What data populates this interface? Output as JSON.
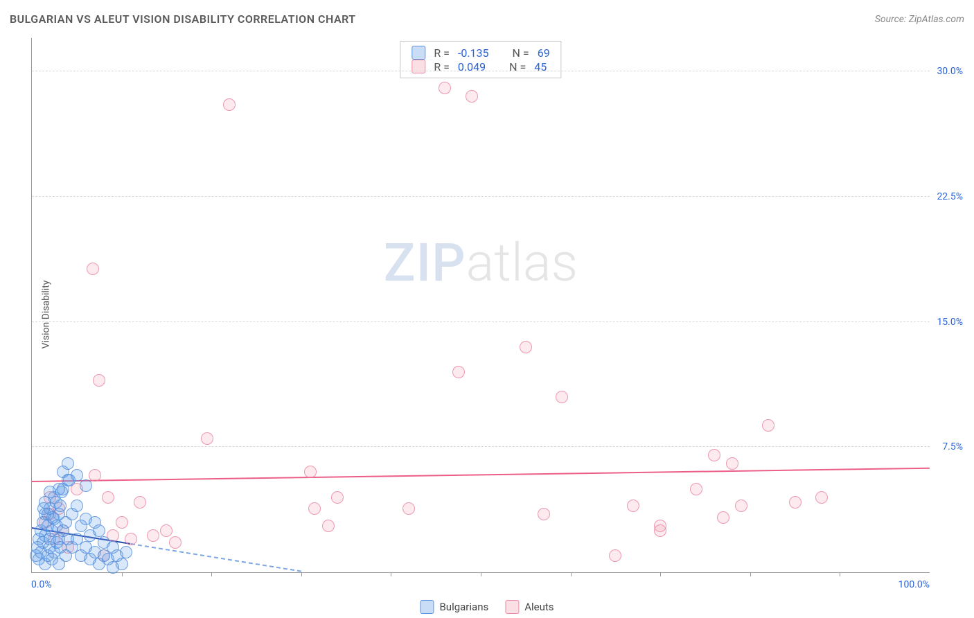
{
  "header": {
    "title": "BULGARIAN VS ALEUT VISION DISABILITY CORRELATION CHART",
    "source": "Source: ZipAtlas.com"
  },
  "watermark": {
    "zip": "ZIP",
    "atlas": "atlas"
  },
  "chart": {
    "type": "scatter",
    "ylabel": "Vision Disability",
    "xlim": [
      0,
      100
    ],
    "ylim": [
      0,
      32
    ],
    "x_tick_positions": [
      10,
      20,
      30,
      40,
      50,
      60,
      70,
      80,
      90
    ],
    "y_gridlines": [
      7.5,
      15.0,
      22.5,
      30.0
    ],
    "y_tick_labels": [
      "7.5%",
      "15.0%",
      "22.5%",
      "30.0%"
    ],
    "x_min_label": "0.0%",
    "x_max_label": "100.0%",
    "background_color": "#ffffff",
    "grid_color": "#d8d8d8",
    "axis_color": "#999999",
    "label_color": "#2962d9",
    "marker_size": 18,
    "series": {
      "bulgarians": {
        "color_fill": "rgba(100,160,230,0.25)",
        "color_stroke": "rgba(80,140,220,0.8)",
        "r": "-0.135",
        "n": "69",
        "trend": {
          "x1": 0,
          "y1": 2.6,
          "x2": 30,
          "y2": 0,
          "solid_until_x": 11
        },
        "points": [
          [
            0.5,
            1.0
          ],
          [
            0.6,
            1.5
          ],
          [
            0.8,
            0.8
          ],
          [
            0.8,
            2.0
          ],
          [
            1.0,
            1.2
          ],
          [
            1.0,
            2.5
          ],
          [
            1.2,
            1.8
          ],
          [
            1.2,
            3.0
          ],
          [
            1.5,
            0.5
          ],
          [
            1.5,
            2.2
          ],
          [
            1.5,
            3.5
          ],
          [
            1.8,
            1.0
          ],
          [
            1.8,
            2.8
          ],
          [
            2.0,
            1.5
          ],
          [
            2.0,
            2.0
          ],
          [
            2.0,
            3.8
          ],
          [
            2.2,
            0.8
          ],
          [
            2.2,
            2.5
          ],
          [
            2.5,
            1.2
          ],
          [
            2.5,
            3.2
          ],
          [
            2.5,
            4.5
          ],
          [
            2.8,
            1.8
          ],
          [
            2.8,
            2.8
          ],
          [
            3.0,
            0.5
          ],
          [
            3.0,
            2.0
          ],
          [
            3.0,
            3.5
          ],
          [
            3.2,
            1.5
          ],
          [
            3.2,
            4.0
          ],
          [
            3.5,
            2.5
          ],
          [
            3.5,
            5.0
          ],
          [
            3.5,
            6.0
          ],
          [
            3.8,
            1.0
          ],
          [
            3.8,
            3.0
          ],
          [
            4.0,
            2.0
          ],
          [
            4.0,
            5.5
          ],
          [
            4.0,
            6.5
          ],
          [
            4.5,
            1.5
          ],
          [
            4.5,
            3.5
          ],
          [
            5.0,
            2.0
          ],
          [
            5.0,
            4.0
          ],
          [
            5.0,
            5.8
          ],
          [
            5.5,
            1.0
          ],
          [
            5.5,
            2.8
          ],
          [
            6.0,
            1.5
          ],
          [
            6.0,
            3.2
          ],
          [
            6.0,
            5.2
          ],
          [
            6.5,
            0.8
          ],
          [
            6.5,
            2.2
          ],
          [
            7.0,
            1.2
          ],
          [
            7.0,
            3.0
          ],
          [
            7.5,
            0.5
          ],
          [
            7.5,
            2.5
          ],
          [
            8.0,
            1.0
          ],
          [
            8.0,
            1.8
          ],
          [
            8.5,
            0.8
          ],
          [
            9.0,
            1.5
          ],
          [
            9.0,
            0.3
          ],
          [
            9.5,
            1.0
          ],
          [
            10.0,
            0.5
          ],
          [
            10.5,
            1.2
          ],
          [
            4.2,
            5.5
          ],
          [
            3.0,
            5.0
          ],
          [
            3.3,
            4.8
          ],
          [
            2.7,
            4.2
          ],
          [
            2.0,
            4.8
          ],
          [
            1.5,
            4.2
          ],
          [
            1.8,
            3.5
          ],
          [
            1.3,
            3.8
          ],
          [
            2.3,
            3.3
          ]
        ]
      },
      "aleuts": {
        "color_fill": "rgba(240,150,170,0.2)",
        "color_stroke": "rgba(235,130,160,0.8)",
        "r": "0.049",
        "n": "45",
        "trend": {
          "x1": 0,
          "y1": 5.4,
          "x2": 100,
          "y2": 6.2
        },
        "points": [
          [
            1.5,
            3.0
          ],
          [
            2.0,
            3.5
          ],
          [
            2.0,
            4.5
          ],
          [
            2.5,
            2.0
          ],
          [
            3.0,
            3.8
          ],
          [
            3.5,
            2.5
          ],
          [
            4.0,
            1.5
          ],
          [
            5.0,
            5.0
          ],
          [
            6.8,
            18.2
          ],
          [
            7.0,
            5.8
          ],
          [
            7.5,
            11.5
          ],
          [
            8.0,
            1.0
          ],
          [
            8.5,
            4.5
          ],
          [
            9.0,
            2.2
          ],
          [
            10.0,
            3.0
          ],
          [
            11.0,
            2.0
          ],
          [
            12.0,
            4.2
          ],
          [
            13.5,
            2.2
          ],
          [
            15.0,
            2.5
          ],
          [
            16.0,
            1.8
          ],
          [
            19.5,
            8.0
          ],
          [
            22.0,
            28.0
          ],
          [
            31.0,
            6.0
          ],
          [
            31.5,
            3.8
          ],
          [
            33.0,
            2.8
          ],
          [
            34.0,
            4.5
          ],
          [
            42.0,
            3.8
          ],
          [
            47.5,
            12.0
          ],
          [
            46.0,
            29.0
          ],
          [
            49.0,
            28.5
          ],
          [
            55.0,
            13.5
          ],
          [
            57.0,
            3.5
          ],
          [
            59.0,
            10.5
          ],
          [
            65.0,
            1.0
          ],
          [
            67.0,
            4.0
          ],
          [
            70.0,
            2.8
          ],
          [
            70.0,
            2.5
          ],
          [
            74.0,
            5.0
          ],
          [
            76.0,
            7.0
          ],
          [
            77.0,
            3.3
          ],
          [
            78.0,
            6.5
          ],
          [
            79.0,
            4.0
          ],
          [
            82.0,
            8.8
          ],
          [
            85.0,
            4.2
          ],
          [
            88.0,
            4.5
          ]
        ]
      }
    }
  },
  "corr_legend": {
    "r_label": "R =",
    "n_label": "N ="
  },
  "bottom_legend": {
    "items": [
      {
        "key": "bulgarians",
        "label": "Bulgarians",
        "swatch": "blue"
      },
      {
        "key": "aleuts",
        "label": "Aleuts",
        "swatch": "pink"
      }
    ]
  }
}
